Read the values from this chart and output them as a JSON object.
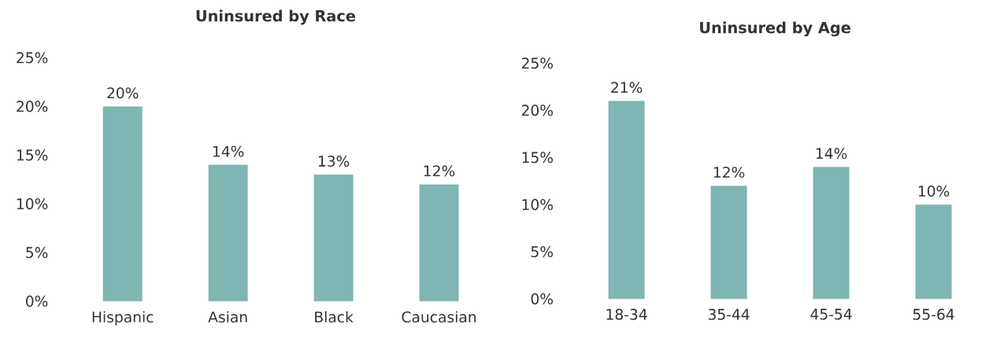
{
  "chart_data": [
    {
      "type": "bar",
      "title": "Uninsured by Race",
      "categories": [
        "Hispanic",
        "Asian",
        "Black",
        "Caucasian"
      ],
      "values": [
        20,
        14,
        13,
        12
      ],
      "value_labels": [
        "20%",
        "14%",
        "13%",
        "12%"
      ],
      "color": "#7fb5b2",
      "ylim": [
        0,
        25
      ],
      "yticks": [
        {
          "value": 0,
          "label": "0%"
        },
        {
          "value": 5,
          "label": "5%"
        },
        {
          "value": 10,
          "label": "10%"
        },
        {
          "value": 15,
          "label": "15%"
        },
        {
          "value": 20,
          "label": "20%"
        },
        {
          "value": 25,
          "label": "25%"
        }
      ]
    },
    {
      "type": "bar",
      "title": "Uninsured by Age",
      "categories": [
        "18-34",
        "35-44",
        "45-54",
        "55-64"
      ],
      "values": [
        21,
        12,
        14,
        10
      ],
      "value_labels": [
        "21%",
        "12%",
        "14%",
        "10%"
      ],
      "color": "#7fb5b2",
      "ylim": [
        0,
        25
      ],
      "yticks": [
        {
          "value": 0,
          "label": "0%"
        },
        {
          "value": 5,
          "label": "5%"
        },
        {
          "value": 10,
          "label": "10%"
        },
        {
          "value": 15,
          "label": "15%"
        },
        {
          "value": 20,
          "label": "20%"
        },
        {
          "value": 25,
          "label": "25%"
        }
      ]
    }
  ]
}
